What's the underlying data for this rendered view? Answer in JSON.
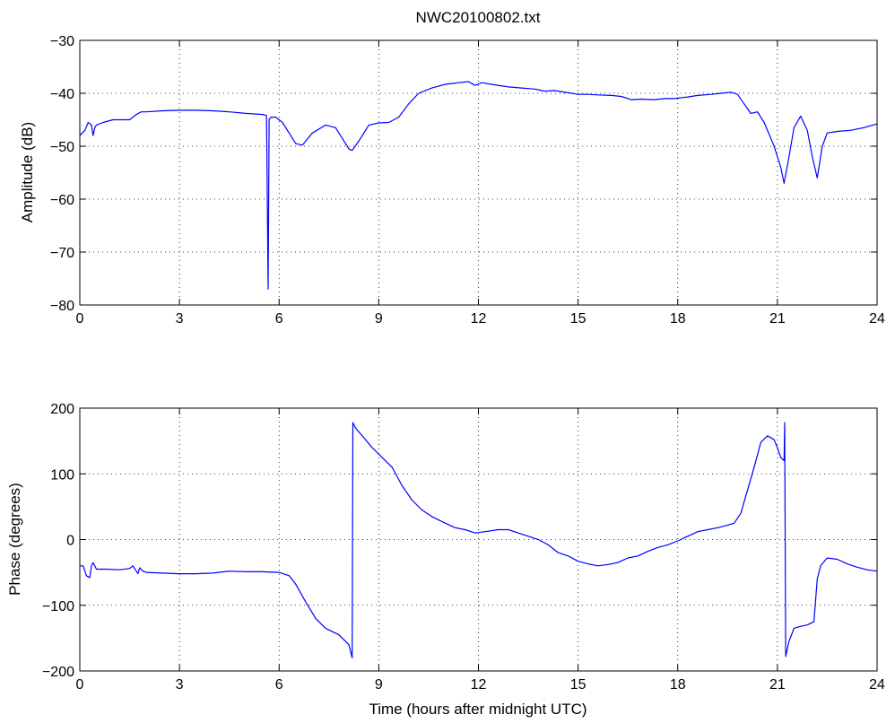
{
  "chart_data": [
    {
      "type": "line",
      "title": "NWC20100802.txt",
      "xlabel": "",
      "ylabel": "Amplitude (dB)",
      "xlim": [
        0,
        24
      ],
      "ylim": [
        -80,
        -30
      ],
      "xticks": [
        "0",
        "3",
        "6",
        "9",
        "12",
        "15",
        "18",
        "21",
        "24"
      ],
      "yticks": [
        "-30",
        "-40",
        "-50",
        "-60",
        "-70",
        "-80"
      ],
      "grid": true,
      "color": "#0000ff",
      "x": [
        0,
        0.15,
        0.25,
        0.35,
        0.4,
        0.45,
        0.5,
        0.7,
        1.0,
        1.5,
        1.7,
        1.85,
        2.0,
        2.5,
        3.0,
        3.5,
        4.0,
        4.5,
        5.0,
        5.5,
        5.62,
        5.67,
        5.7,
        5.75,
        5.9,
        6.1,
        6.3,
        6.5,
        6.7,
        7.0,
        7.4,
        7.7,
        7.9,
        8.1,
        8.2,
        8.4,
        8.7,
        9.0,
        9.3,
        9.6,
        9.9,
        10.2,
        10.6,
        11.0,
        11.4,
        11.7,
        11.9,
        12.1,
        12.5,
        12.9,
        13.3,
        13.7,
        14.0,
        14.3,
        14.7,
        15.0,
        15.3,
        15.6,
        16.0,
        16.3,
        16.6,
        16.9,
        17.3,
        17.6,
        17.9,
        18.3,
        18.6,
        19.0,
        19.3,
        19.6,
        19.8,
        20.0,
        20.2,
        20.4,
        20.6,
        20.9,
        21.1,
        21.2,
        21.35,
        21.5,
        21.7,
        21.9,
        22.05,
        22.2,
        22.35,
        22.5,
        22.8,
        23.2,
        23.6,
        24.0
      ],
      "values": [
        -48,
        -47,
        -45.5,
        -46,
        -48,
        -46.5,
        -46,
        -45.5,
        -45,
        -45,
        -44,
        -43.5,
        -43.5,
        -43.3,
        -43.2,
        -43.2,
        -43.3,
        -43.5,
        -43.8,
        -44,
        -44.2,
        -77,
        -45,
        -44.5,
        -44.5,
        -45.5,
        -47.5,
        -49.5,
        -49.8,
        -47.5,
        -46,
        -46.5,
        -48.5,
        -50.5,
        -50.8,
        -49,
        -46,
        -45.6,
        -45.5,
        -44.5,
        -42,
        -40,
        -39,
        -38.3,
        -38,
        -37.8,
        -38.5,
        -38,
        -38.4,
        -38.8,
        -39,
        -39.2,
        -39.6,
        -39.5,
        -39.9,
        -40.2,
        -40.2,
        -40.3,
        -40.4,
        -40.6,
        -41.2,
        -41.1,
        -41.2,
        -41,
        -41,
        -40.7,
        -40.4,
        -40.2,
        -40,
        -39.8,
        -40.2,
        -42,
        -43.8,
        -43.5,
        -45.5,
        -50,
        -54,
        -57,
        -52,
        -46.5,
        -44.3,
        -47,
        -52,
        -56,
        -50,
        -47.5,
        -47.2,
        -47,
        -46.5,
        -45.8
      ]
    },
    {
      "type": "line",
      "title": "",
      "xlabel": "Time (hours after midnight UTC)",
      "ylabel": "Phase (degrees)",
      "xlim": [
        0,
        24
      ],
      "ylim": [
        -200,
        200
      ],
      "xticks": [
        "0",
        "3",
        "6",
        "9",
        "12",
        "15",
        "18",
        "21",
        "24"
      ],
      "yticks": [
        "200",
        "100",
        "0",
        "-100",
        "-200"
      ],
      "grid": true,
      "color": "#0000ff",
      "x": [
        0,
        0.1,
        0.2,
        0.3,
        0.35,
        0.4,
        0.45,
        0.5,
        0.8,
        1.2,
        1.5,
        1.6,
        1.7,
        1.75,
        1.8,
        1.9,
        2.0,
        2.5,
        3.0,
        3.5,
        4.0,
        4.5,
        5.0,
        5.5,
        6.0,
        6.3,
        6.5,
        6.8,
        7.1,
        7.4,
        7.8,
        8.1,
        8.2,
        8.22,
        8.3,
        8.5,
        8.8,
        9.1,
        9.4,
        9.7,
        10.0,
        10.3,
        10.6,
        11.0,
        11.3,
        11.6,
        11.9,
        12.2,
        12.6,
        12.9,
        13.2,
        13.5,
        13.8,
        14.1,
        14.4,
        14.7,
        15.0,
        15.3,
        15.6,
        15.9,
        16.2,
        16.5,
        16.8,
        17.1,
        17.4,
        17.7,
        18.0,
        18.3,
        18.6,
        18.9,
        19.2,
        19.5,
        19.7,
        19.9,
        20.1,
        20.3,
        20.5,
        20.7,
        20.9,
        21.0,
        21.1,
        21.2,
        21.22,
        21.25,
        21.35,
        21.5,
        21.7,
        21.9,
        22.1,
        22.2,
        22.3,
        22.5,
        22.8,
        23.1,
        23.4,
        23.7,
        24.0
      ],
      "values": [
        -40,
        -40,
        -55,
        -58,
        -40,
        -35,
        -40,
        -45,
        -45,
        -46,
        -44,
        -40,
        -48,
        -52,
        -43,
        -48,
        -50,
        -51,
        -52,
        -52,
        -51,
        -48,
        -49,
        -49,
        -50,
        -55,
        -68,
        -95,
        -120,
        -135,
        -145,
        -160,
        -180,
        178,
        170,
        158,
        140,
        125,
        110,
        82,
        60,
        45,
        35,
        25,
        18,
        15,
        10,
        12,
        15,
        15,
        10,
        5,
        0,
        -8,
        -20,
        -25,
        -33,
        -37,
        -40,
        -38,
        -35,
        -28,
        -25,
        -18,
        -12,
        -8,
        -2,
        5,
        12,
        15,
        18,
        22,
        25,
        40,
        75,
        110,
        148,
        158,
        152,
        140,
        125,
        120,
        178,
        -178,
        -155,
        -135,
        -132,
        -130,
        -125,
        -60,
        -40,
        -28,
        -30,
        -37,
        -42,
        -46,
        -48
      ]
    }
  ]
}
